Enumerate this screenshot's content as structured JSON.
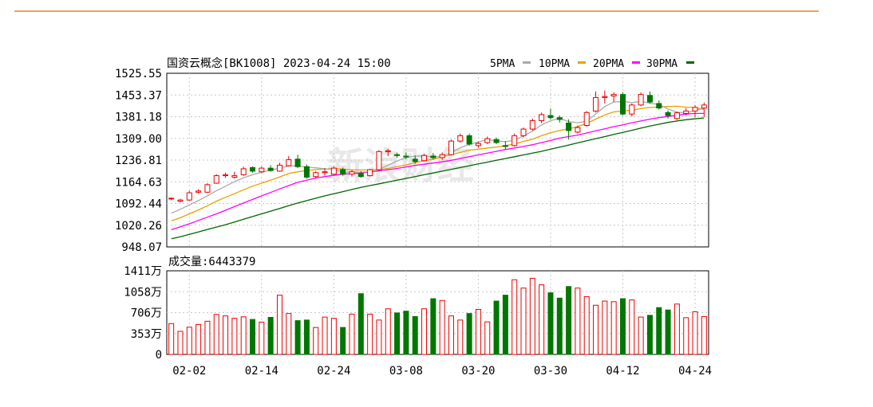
{
  "colors": {
    "up": "#ee0000",
    "down": "#007700",
    "ma5": "#aaaaaa",
    "ma10": "#e8a000",
    "ma20": "#ff00ff",
    "ma30": "#006600",
    "accent": "#f0a060",
    "grid": "#c8c8c8"
  },
  "watermark": "新浪财经",
  "chart_data": {
    "type": "candlestick",
    "title": "国资云概念[BK1008] 2023-04-24 15:00",
    "legend": [
      "5PMA",
      "10PMA",
      "20PMA",
      "30PMA"
    ],
    "legend_placement": "top-right",
    "y_ticks": [
      "1525.55",
      "1453.37",
      "1381.18",
      "1309.00",
      "1236.81",
      "1164.63",
      "1092.44",
      "1020.26",
      "948.07"
    ],
    "ylim": [
      948.07,
      1525.55
    ],
    "volume_label": "成交量:6443379",
    "volume_ticks": [
      "1411万",
      "1058万",
      "706万",
      "353万",
      "0"
    ],
    "volume_ylim": [
      0,
      1411
    ],
    "x_ticks": [
      {
        "label": "02-02",
        "index": 2
      },
      {
        "label": "02-14",
        "index": 10
      },
      {
        "label": "02-24",
        "index": 18
      },
      {
        "label": "03-08",
        "index": 26
      },
      {
        "label": "03-20",
        "index": 34
      },
      {
        "label": "03-30",
        "index": 42
      },
      {
        "label": "04-12",
        "index": 50
      },
      {
        "label": "04-24",
        "index": 58
      }
    ],
    "ohlc": [
      [
        1108,
        1112,
        1104,
        1110
      ],
      [
        1100,
        1108,
        1096,
        1104
      ],
      [
        1104,
        1135,
        1102,
        1128
      ],
      [
        1130,
        1140,
        1126,
        1134
      ],
      [
        1130,
        1160,
        1128,
        1155
      ],
      [
        1160,
        1190,
        1158,
        1185
      ],
      [
        1185,
        1195,
        1178,
        1188
      ],
      [
        1180,
        1198,
        1175,
        1185
      ],
      [
        1188,
        1215,
        1185,
        1208
      ],
      [
        1212,
        1216,
        1195,
        1200
      ],
      [
        1198,
        1215,
        1195,
        1210
      ],
      [
        1210,
        1220,
        1198,
        1202
      ],
      [
        1200,
        1228,
        1198,
        1220
      ],
      [
        1218,
        1250,
        1216,
        1238
      ],
      [
        1240,
        1255,
        1210,
        1215
      ],
      [
        1215,
        1222,
        1175,
        1180
      ],
      [
        1182,
        1200,
        1176,
        1195
      ],
      [
        1195,
        1210,
        1185,
        1198
      ],
      [
        1190,
        1215,
        1188,
        1210
      ],
      [
        1205,
        1212,
        1185,
        1190
      ],
      [
        1190,
        1205,
        1182,
        1198
      ],
      [
        1192,
        1200,
        1178,
        1182
      ],
      [
        1185,
        1208,
        1183,
        1205
      ],
      [
        1205,
        1270,
        1200,
        1265
      ],
      [
        1265,
        1275,
        1250,
        1268
      ],
      [
        1255,
        1262,
        1245,
        1252
      ],
      [
        1250,
        1262,
        1240,
        1248
      ],
      [
        1240,
        1252,
        1225,
        1232
      ],
      [
        1235,
        1258,
        1232,
        1252
      ],
      [
        1250,
        1260,
        1238,
        1245
      ],
      [
        1245,
        1262,
        1238,
        1255
      ],
      [
        1255,
        1305,
        1252,
        1300
      ],
      [
        1300,
        1325,
        1295,
        1318
      ],
      [
        1318,
        1325,
        1285,
        1290
      ],
      [
        1285,
        1298,
        1278,
        1292
      ],
      [
        1295,
        1315,
        1290,
        1308
      ],
      [
        1305,
        1312,
        1290,
        1295
      ],
      [
        1285,
        1300,
        1272,
        1282
      ],
      [
        1285,
        1325,
        1282,
        1318
      ],
      [
        1318,
        1345,
        1312,
        1340
      ],
      [
        1340,
        1375,
        1335,
        1368
      ],
      [
        1368,
        1395,
        1360,
        1388
      ],
      [
        1385,
        1408,
        1372,
        1378
      ],
      [
        1378,
        1385,
        1362,
        1372
      ],
      [
        1360,
        1372,
        1305,
        1335
      ],
      [
        1330,
        1352,
        1325,
        1345
      ],
      [
        1352,
        1400,
        1348,
        1395
      ],
      [
        1400,
        1465,
        1395,
        1445
      ],
      [
        1445,
        1468,
        1425,
        1448
      ],
      [
        1450,
        1462,
        1430,
        1455
      ],
      [
        1455,
        1462,
        1385,
        1390
      ],
      [
        1390,
        1425,
        1382,
        1420
      ],
      [
        1420,
        1462,
        1416,
        1455
      ],
      [
        1452,
        1465,
        1425,
        1430
      ],
      [
        1425,
        1435,
        1405,
        1410
      ],
      [
        1395,
        1402,
        1375,
        1385
      ],
      [
        1375,
        1398,
        1370,
        1394
      ],
      [
        1392,
        1410,
        1385,
        1400
      ],
      [
        1400,
        1420,
        1380,
        1412
      ],
      [
        1410,
        1428,
        1380,
        1420
      ]
    ],
    "volumes": [
      520,
      390,
      460,
      505,
      560,
      675,
      650,
      610,
      635,
      590,
      545,
      625,
      1000,
      690,
      570,
      580,
      455,
      630,
      610,
      455,
      680,
      1025,
      680,
      580,
      770,
      700,
      730,
      640,
      770,
      940,
      910,
      650,
      580,
      690,
      760,
      550,
      900,
      1000,
      1260,
      1120,
      1285,
      1175,
      1040,
      950,
      1145,
      1120,
      975,
      830,
      900,
      890,
      940,
      920,
      630,
      660,
      790,
      750,
      850,
      620,
      720,
      640
    ],
    "ma5": [
      1060,
      1073,
      1088,
      1102,
      1118,
      1135,
      1150,
      1165,
      1178,
      1188,
      1196,
      1203,
      1211,
      1217,
      1218,
      1213,
      1211,
      1208,
      1205,
      1198,
      1196,
      1197,
      1198,
      1205,
      1220,
      1234,
      1245,
      1250,
      1250,
      1248,
      1249,
      1262,
      1278,
      1289,
      1297,
      1305,
      1301,
      1298,
      1303,
      1317,
      1333,
      1354,
      1368,
      1376,
      1365,
      1361,
      1366,
      1390,
      1415,
      1430,
      1432,
      1428,
      1432,
      1426,
      1422,
      1407,
      1396,
      1394,
      1402,
      1409
    ],
    "ma10": [
      1035,
      1045,
      1058,
      1071,
      1085,
      1100,
      1113,
      1125,
      1138,
      1150,
      1160,
      1170,
      1181,
      1192,
      1198,
      1202,
      1205,
      1207,
      1209,
      1207,
      1204,
      1204,
      1204,
      1205,
      1209,
      1215,
      1221,
      1228,
      1235,
      1240,
      1247,
      1255,
      1262,
      1270,
      1273,
      1277,
      1280,
      1285,
      1290,
      1299,
      1306,
      1318,
      1328,
      1335,
      1341,
      1348,
      1359,
      1373,
      1387,
      1397,
      1400,
      1403,
      1408,
      1412,
      1413,
      1415,
      1416,
      1413,
      1412,
      1405
    ],
    "ma20": [
      1005,
      1015,
      1025,
      1036,
      1047,
      1058,
      1070,
      1082,
      1094,
      1106,
      1118,
      1129,
      1141,
      1152,
      1163,
      1170,
      1177,
      1182,
      1186,
      1190,
      1192,
      1194,
      1197,
      1201,
      1205,
      1209,
      1214,
      1219,
      1223,
      1227,
      1231,
      1236,
      1242,
      1248,
      1254,
      1260,
      1266,
      1272,
      1277,
      1282,
      1288,
      1295,
      1302,
      1310,
      1315,
      1320,
      1327,
      1334,
      1341,
      1348,
      1354,
      1361,
      1367,
      1373,
      1378,
      1382,
      1386,
      1390,
      1392,
      1392
    ],
    "ma30": [
      975,
      982,
      990,
      998,
      1006,
      1014,
      1022,
      1031,
      1040,
      1049,
      1058,
      1067,
      1076,
      1085,
      1094,
      1102,
      1110,
      1118,
      1125,
      1132,
      1139,
      1146,
      1152,
      1158,
      1164,
      1170,
      1176,
      1182,
      1188,
      1194,
      1200,
      1206,
      1212,
      1218,
      1224,
      1230,
      1236,
      1242,
      1248,
      1254,
      1260,
      1266,
      1273,
      1280,
      1287,
      1294,
      1301,
      1308,
      1315,
      1322,
      1329,
      1336,
      1343,
      1350,
      1356,
      1362,
      1367,
      1371,
      1374,
      1377
    ]
  }
}
